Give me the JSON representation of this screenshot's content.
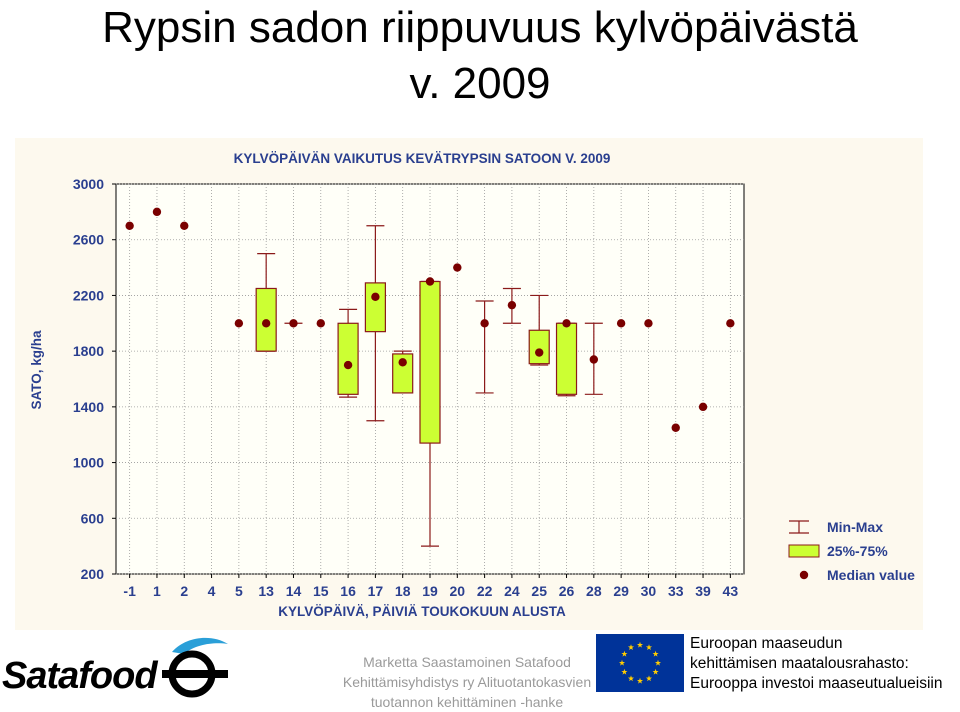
{
  "slide": {
    "title_line1": "Rypsin sadon riippuvuus kylvöpäivästä",
    "title_line2": "v. 2009"
  },
  "footer": {
    "logo": "Satafood",
    "credit_lines": [
      "Marketta Saastamoinen Satafood",
      "Kehittämisyhdistys ry Alituotantokasvien",
      "tuotannon kehittäminen -hanke"
    ],
    "eu_lines": [
      "Euroopan maaseudun",
      "kehittämisen maatalousrahasto:",
      "Eurooppa investoi maaseutualueisiin"
    ],
    "eu_flag_color": "#003399",
    "eu_star_color": "#ffcc00"
  },
  "chart_data": {
    "type": "box",
    "title": "KYLVÖPÄIVÄN VAIKUTUS KEVÄTRYPSIN SATOON V. 2009",
    "xlabel": "KYLVÖPÄIVÄ, PÄIVIÄ TOUKOKUUN ALUSTA",
    "ylabel": "SATO, kg/ha",
    "ylim": [
      200,
      3000
    ],
    "yticks": [
      200,
      600,
      1000,
      1400,
      1800,
      2200,
      2600,
      3000
    ],
    "categories": [
      "-1",
      "1",
      "2",
      "4",
      "5",
      "13",
      "14",
      "15",
      "16",
      "17",
      "18",
      "19",
      "20",
      "22",
      "24",
      "25",
      "26",
      "28",
      "29",
      "30",
      "33",
      "39",
      "43"
    ],
    "series": [
      {
        "category": "-1",
        "median": 2700
      },
      {
        "category": "1",
        "median": 2800
      },
      {
        "category": "2",
        "median": 2700
      },
      {
        "category": "4"
      },
      {
        "category": "5",
        "median": 2000
      },
      {
        "category": "13",
        "min": 1800,
        "q1": 1800,
        "q3": 2250,
        "max": 2500,
        "median": 2000
      },
      {
        "category": "14",
        "min": 2000,
        "max": 2000,
        "median": 2000
      },
      {
        "category": "15",
        "median": 2000
      },
      {
        "category": "16",
        "min": 1470,
        "q1": 1490,
        "q3": 2000,
        "max": 2100,
        "median": 1700
      },
      {
        "category": "17",
        "min": 1300,
        "q1": 1940,
        "q3": 2290,
        "max": 2700,
        "median": 2190
      },
      {
        "category": "18",
        "min": 1500,
        "q1": 1500,
        "q3": 1780,
        "max": 1800,
        "median": 1720
      },
      {
        "category": "19",
        "min": 400,
        "q1": 1140,
        "q3": 2300,
        "max": 2300,
        "median": 2300
      },
      {
        "category": "20",
        "median": 2400
      },
      {
        "category": "22",
        "min": 1500,
        "max": 2160,
        "median": 2000
      },
      {
        "category": "24",
        "min": 2000,
        "max": 2250,
        "median": 2130
      },
      {
        "category": "25",
        "min": 1700,
        "q1": 1710,
        "q3": 1950,
        "max": 2200,
        "median": 1790
      },
      {
        "category": "26",
        "min": 1480,
        "q1": 1490,
        "q3": 2000,
        "max": 2000,
        "median": 2000
      },
      {
        "category": "28",
        "min": 1490,
        "max": 2000,
        "median": 1740
      },
      {
        "category": "29",
        "median": 2000
      },
      {
        "category": "30",
        "median": 2000
      },
      {
        "category": "33",
        "median": 1250
      },
      {
        "category": "39",
        "median": 1400
      },
      {
        "category": "43",
        "median": 2000
      }
    ],
    "legend": {
      "items": [
        "Min-Max",
        "25%-75%",
        "Median value"
      ],
      "position": "bottom-right"
    },
    "colors": {
      "background": "#fdf9ee",
      "box_fill": "#ccff33",
      "whisker": "#8b1a1a",
      "median_marker": "#7a0000",
      "title_text": "#2a3f8f",
      "grid": "#9a9a9a"
    },
    "grid": true
  }
}
